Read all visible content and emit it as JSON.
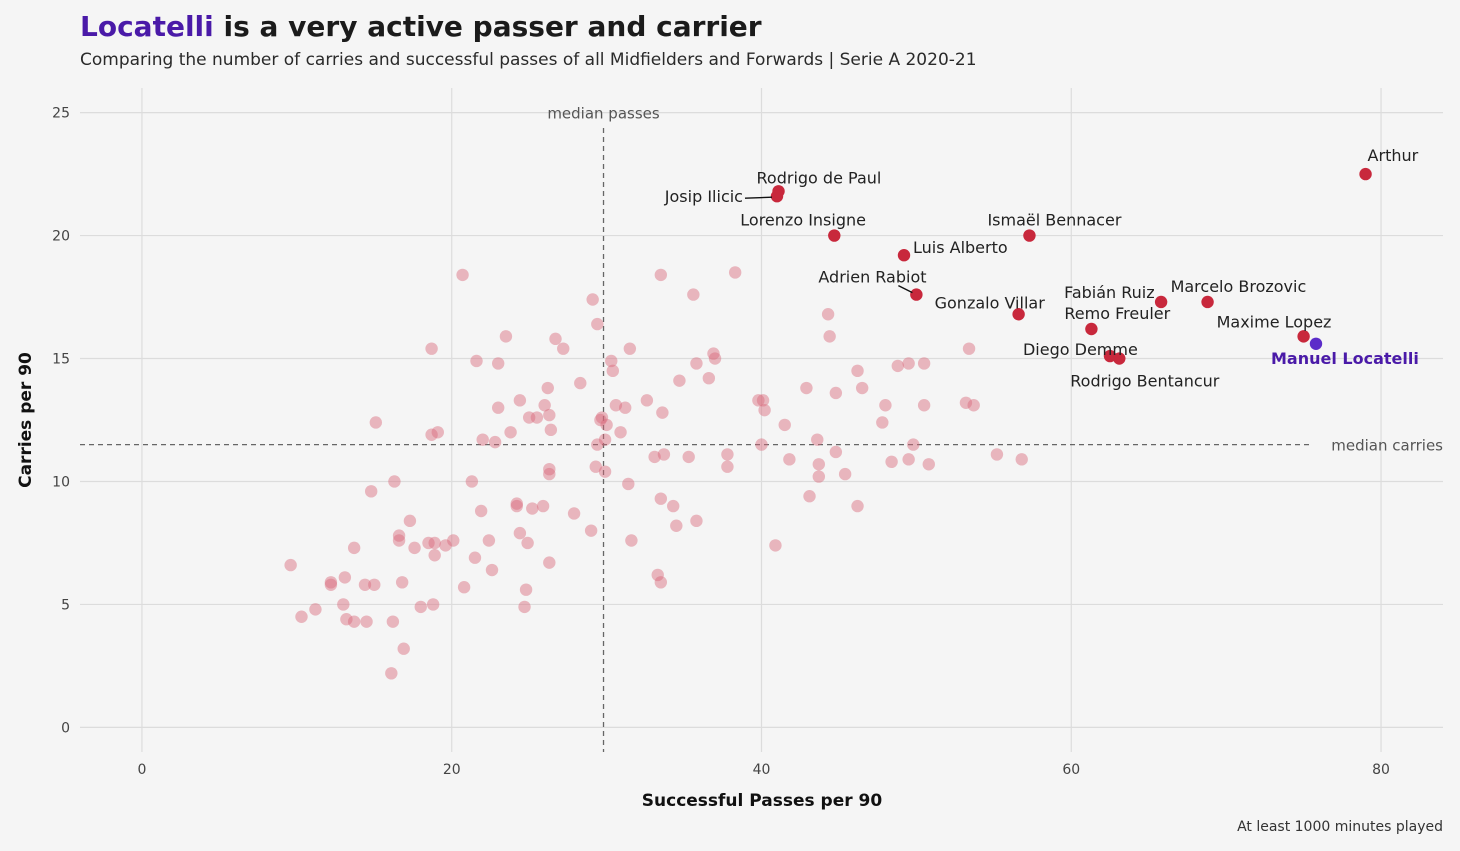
{
  "header": {
    "title_highlight": "Locatelli",
    "title_rest": " is a very active passer and carrier",
    "subtitle": "Comparing the number of carries and successful passes of all Midfielders and Forwards | Serie A 2020-21",
    "caption": "At least 1000 minutes played"
  },
  "colors": {
    "background": "#f5f5f5",
    "grid": "#dcdcdc",
    "point_faint": "#d9687a",
    "point_named": "#c8283c",
    "highlight": "#5b2cc9",
    "highlight_text": "#4a1aa8",
    "median_line": "#666666"
  },
  "chart_data": {
    "type": "scatter",
    "xlabel": "Successful Passes per 90",
    "ylabel": "Carries per 90",
    "xlim": [
      -4,
      84
    ],
    "ylim": [
      -1,
      26
    ],
    "xticks": [
      0,
      20,
      40,
      60,
      80
    ],
    "yticks": [
      0,
      5,
      10,
      15,
      20,
      25
    ],
    "grid": true,
    "median_passes": {
      "value": 29.8,
      "label": "median passes"
    },
    "median_carries": {
      "value": 11.5,
      "label": "median carries"
    },
    "labeled_points": [
      {
        "name": "Arthur",
        "x": 79.0,
        "y": 22.5
      },
      {
        "name": "Rodrigo de Paul",
        "x": 41.1,
        "y": 21.8
      },
      {
        "name": "Josip Ilicic",
        "x": 41.0,
        "y": 21.6
      },
      {
        "name": "Lorenzo Insigne",
        "x": 44.7,
        "y": 20.0
      },
      {
        "name": "Ismaël Bennacer",
        "x": 57.3,
        "y": 20.0
      },
      {
        "name": "Luis Alberto",
        "x": 49.2,
        "y": 19.2
      },
      {
        "name": "Adrien Rabiot",
        "x": 50.0,
        "y": 17.6
      },
      {
        "name": "Gonzalo Villar",
        "x": 56.6,
        "y": 16.8
      },
      {
        "name": "Fabián Ruiz",
        "x": 65.8,
        "y": 17.3
      },
      {
        "name": "Marcelo Brozovic",
        "x": 68.8,
        "y": 17.3
      },
      {
        "name": "Remo Freuler",
        "x": 61.3,
        "y": 16.2
      },
      {
        "name": "Maxime Lopez",
        "x": 75.0,
        "y": 15.9
      },
      {
        "name": "Diego Demme",
        "x": 62.5,
        "y": 15.1
      },
      {
        "name": "Rodrigo Bentancur",
        "x": 63.1,
        "y": 15.0
      },
      {
        "name": "Manuel Locatelli",
        "x": 75.8,
        "y": 15.6,
        "highlight": true
      }
    ],
    "points": [
      [
        9.6,
        6.6
      ],
      [
        10.3,
        4.5
      ],
      [
        11.2,
        4.8
      ],
      [
        12.2,
        5.8
      ],
      [
        12.2,
        5.9
      ],
      [
        13.1,
        6.1
      ],
      [
        13.0,
        5.0
      ],
      [
        13.2,
        4.4
      ],
      [
        13.7,
        4.3
      ],
      [
        13.7,
        7.3
      ],
      [
        14.4,
        5.8
      ],
      [
        14.5,
        4.3
      ],
      [
        14.8,
        9.6
      ],
      [
        15.0,
        5.8
      ],
      [
        15.1,
        12.4
      ],
      [
        16.1,
        2.2
      ],
      [
        16.3,
        10.0
      ],
      [
        16.2,
        4.3
      ],
      [
        16.6,
        7.8
      ],
      [
        16.6,
        7.6
      ],
      [
        16.8,
        5.9
      ],
      [
        16.9,
        3.2
      ],
      [
        17.3,
        8.4
      ],
      [
        17.6,
        7.3
      ],
      [
        18.0,
        4.9
      ],
      [
        18.5,
        7.5
      ],
      [
        18.8,
        5.0
      ],
      [
        18.9,
        7.0
      ],
      [
        18.9,
        7.5
      ],
      [
        18.7,
        15.4
      ],
      [
        18.7,
        11.9
      ],
      [
        19.1,
        12.0
      ],
      [
        19.6,
        7.4
      ],
      [
        20.1,
        7.6
      ],
      [
        20.7,
        18.4
      ],
      [
        20.8,
        5.7
      ],
      [
        21.3,
        10.0
      ],
      [
        21.5,
        6.9
      ],
      [
        21.6,
        14.9
      ],
      [
        21.9,
        8.8
      ],
      [
        22.0,
        11.7
      ],
      [
        22.4,
        7.6
      ],
      [
        22.6,
        6.4
      ],
      [
        22.8,
        11.6
      ],
      [
        23.0,
        14.8
      ],
      [
        23.0,
        13.0
      ],
      [
        23.5,
        15.9
      ],
      [
        23.8,
        12.0
      ],
      [
        24.2,
        9.1
      ],
      [
        24.2,
        9.0
      ],
      [
        24.4,
        13.3
      ],
      [
        24.4,
        7.9
      ],
      [
        24.7,
        4.9
      ],
      [
        24.8,
        5.6
      ],
      [
        24.9,
        7.5
      ],
      [
        25.0,
        12.6
      ],
      [
        25.2,
        8.9
      ],
      [
        25.5,
        12.6
      ],
      [
        25.9,
        9.0
      ],
      [
        26.0,
        13.1
      ],
      [
        26.2,
        13.8
      ],
      [
        26.3,
        12.7
      ],
      [
        26.3,
        10.5
      ],
      [
        26.4,
        12.1
      ],
      [
        26.3,
        10.3
      ],
      [
        26.3,
        6.7
      ],
      [
        26.7,
        15.8
      ],
      [
        27.2,
        15.4
      ],
      [
        27.9,
        8.7
      ],
      [
        28.3,
        14.0
      ],
      [
        29.0,
        8.0
      ],
      [
        29.1,
        17.4
      ],
      [
        29.3,
        10.6
      ],
      [
        29.4,
        16.4
      ],
      [
        29.4,
        11.5
      ],
      [
        29.6,
        12.5
      ],
      [
        29.7,
        12.6
      ],
      [
        29.9,
        11.7
      ],
      [
        29.9,
        10.4
      ],
      [
        30.0,
        12.3
      ],
      [
        30.3,
        14.9
      ],
      [
        30.4,
        14.5
      ],
      [
        30.6,
        13.1
      ],
      [
        30.9,
        12.0
      ],
      [
        31.2,
        13.0
      ],
      [
        31.5,
        15.4
      ],
      [
        31.4,
        9.9
      ],
      [
        31.6,
        7.6
      ],
      [
        32.6,
        13.3
      ],
      [
        33.1,
        11.0
      ],
      [
        33.3,
        6.2
      ],
      [
        33.5,
        9.3
      ],
      [
        33.5,
        5.9
      ],
      [
        33.5,
        18.4
      ],
      [
        33.7,
        11.1
      ],
      [
        33.6,
        12.8
      ],
      [
        34.3,
        9.0
      ],
      [
        34.5,
        8.2
      ],
      [
        34.7,
        14.1
      ],
      [
        35.3,
        11.0
      ],
      [
        35.6,
        17.6
      ],
      [
        35.8,
        14.8
      ],
      [
        35.8,
        8.4
      ],
      [
        36.6,
        14.2
      ],
      [
        36.9,
        15.2
      ],
      [
        37.0,
        15.0
      ],
      [
        37.8,
        11.1
      ],
      [
        37.8,
        10.6
      ],
      [
        38.3,
        18.5
      ],
      [
        39.8,
        13.3
      ],
      [
        40.1,
        13.3
      ],
      [
        40.0,
        11.5
      ],
      [
        40.2,
        12.9
      ],
      [
        40.9,
        7.4
      ],
      [
        41.5,
        12.3
      ],
      [
        41.8,
        10.9
      ],
      [
        42.9,
        13.8
      ],
      [
        43.1,
        9.4
      ],
      [
        43.6,
        11.7
      ],
      [
        43.7,
        10.7
      ],
      [
        43.7,
        10.2
      ],
      [
        44.3,
        16.8
      ],
      [
        44.4,
        15.9
      ],
      [
        44.8,
        13.6
      ],
      [
        44.8,
        11.2
      ],
      [
        45.4,
        10.3
      ],
      [
        46.2,
        14.5
      ],
      [
        46.2,
        9.0
      ],
      [
        46.5,
        13.8
      ],
      [
        47.8,
        12.4
      ],
      [
        48.0,
        13.1
      ],
      [
        48.4,
        10.8
      ],
      [
        48.8,
        14.7
      ],
      [
        49.5,
        14.8
      ],
      [
        49.5,
        10.9
      ],
      [
        49.8,
        11.5
      ],
      [
        50.5,
        14.8
      ],
      [
        50.5,
        13.1
      ],
      [
        50.8,
        10.7
      ],
      [
        53.2,
        13.2
      ],
      [
        53.4,
        15.4
      ],
      [
        53.7,
        13.1
      ],
      [
        55.2,
        11.1
      ],
      [
        56.8,
        10.9
      ]
    ]
  }
}
